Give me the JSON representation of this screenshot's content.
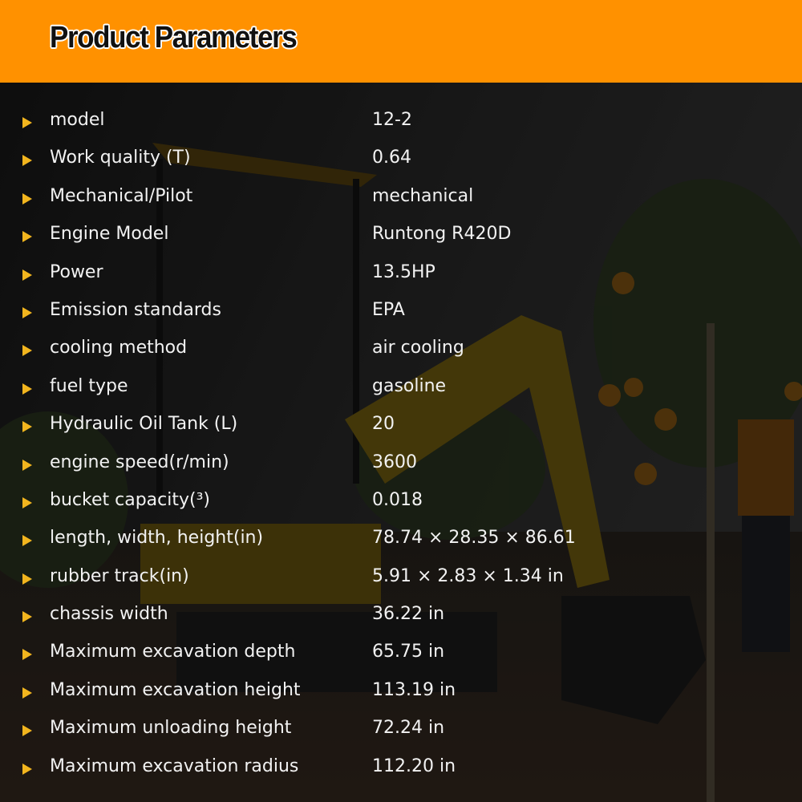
{
  "header": {
    "title": "Product Parameters",
    "background_color": "#FF9100"
  },
  "accent_color": "#F2B51E",
  "parameters": [
    {
      "label": "model",
      "value": "12-2"
    },
    {
      "label": "Work quality (T)",
      "value": "0.64"
    },
    {
      "label": "Mechanical/Pilot",
      "value": "mechanical"
    },
    {
      "label": "Engine Model",
      "value": "Runtong R420D"
    },
    {
      "label": "Power",
      "value": "13.5HP"
    },
    {
      "label": "Emission standards",
      "value": "EPA"
    },
    {
      "label": "cooling method",
      "value": "air cooling"
    },
    {
      "label": "fuel type",
      "value": "gasoline"
    },
    {
      "label": "Hydraulic Oil Tank (L)",
      "value": "20"
    },
    {
      "label": "engine speed(r/min)",
      "value": "3600"
    },
    {
      "label": "bucket capacity(³)",
      "value": "0.018"
    },
    {
      "label": "length, width, height(in)",
      "value": "78.74 × 28.35 × 86.61"
    },
    {
      "label": "rubber track(in)",
      "value": "5.91 × 2.83 × 1.34 in"
    },
    {
      "label": "chassis width",
      "value": "36.22 in"
    },
    {
      "label": "Maximum excavation depth",
      "value": "65.75 in"
    },
    {
      "label": "Maximum excavation height",
      "value": "113.19 in"
    },
    {
      "label": "Maximum unloading height",
      "value": "72.24 in"
    },
    {
      "label": "Maximum excavation radius",
      "value": "112.20 in"
    }
  ]
}
